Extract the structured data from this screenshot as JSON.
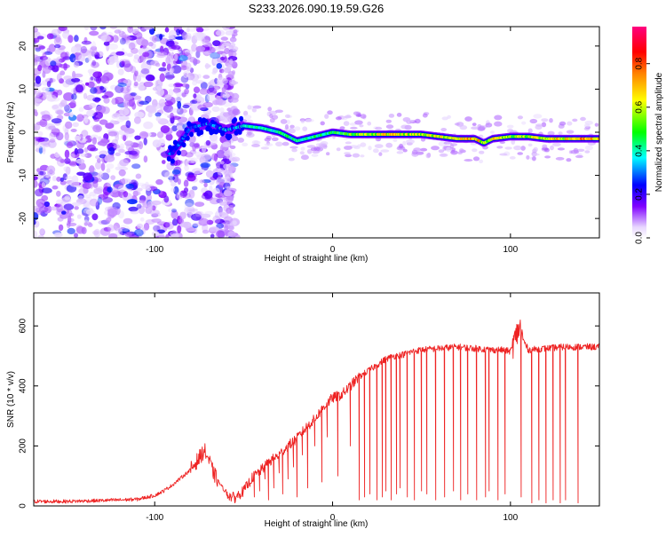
{
  "title": "S233.2026.090.19.59.G26",
  "chart_data": [
    {
      "type": "heatmap",
      "title": "S233.2026.090.19.59.G26",
      "xlabel": "Height of straight line (km)",
      "ylabel": "Frequency (Hz)",
      "xlim": [
        -168,
        150
      ],
      "ylim": [
        -24.5,
        24.5
      ],
      "xticks": [
        -100,
        0,
        100
      ],
      "yticks": [
        -20,
        -10,
        0,
        10,
        20
      ],
      "colorbar": {
        "label": "Normalized spectral amplitude",
        "range": [
          0,
          0.97
        ],
        "ticks": [
          0.0,
          0.2,
          0.4,
          0.6,
          0.8
        ],
        "tick_labels": [
          "0.0",
          "0.2",
          "0.4",
          "0.6",
          "0.8"
        ],
        "colors": [
          "#ffffff",
          "#7f00ff",
          "#0000ff",
          "#00ffff",
          "#00ff00",
          "#ffff00",
          "#ff8000",
          "#ff0000",
          "#ff0080"
        ]
      },
      "ridge": {
        "name": "frequency ridge",
        "x": [
          -90,
          -80,
          -70,
          -60,
          -50,
          -40,
          -30,
          -20,
          -10,
          0,
          10,
          20,
          30,
          40,
          50,
          60,
          70,
          80,
          85,
          90,
          100,
          110,
          120,
          130,
          140,
          150
        ],
        "y": [
          -5,
          1,
          2,
          0.5,
          1.5,
          1,
          0,
          -2,
          -1,
          0,
          -0.5,
          -0.5,
          -0.5,
          -0.5,
          -0.5,
          -1,
          -1.5,
          -1.5,
          -2.5,
          -1.5,
          -1,
          -1,
          -1.5,
          -1.5,
          -1.5,
          -1.5
        ],
        "amplitude": [
          0.3,
          0.3,
          0.35,
          0.4,
          0.4,
          0.45,
          0.45,
          0.45,
          0.45,
          0.5,
          0.55,
          0.6,
          0.7,
          0.65,
          0.65,
          0.65,
          0.7,
          0.8,
          0.6,
          0.7,
          0.6,
          0.6,
          0.65,
          0.7,
          0.75,
          0.7
        ]
      },
      "noise_region": {
        "x_range": [
          -168,
          -55
        ],
        "amplitude_range": [
          0.05,
          0.3
        ]
      }
    },
    {
      "type": "line",
      "xlabel": "Height of straight line (km)",
      "ylabel": "SNR (10 * v/v)",
      "xlim": [
        -168,
        150
      ],
      "ylim": [
        0,
        710
      ],
      "xticks": [
        -100,
        0,
        100
      ],
      "yticks": [
        0,
        200,
        400,
        600
      ],
      "series": [
        {
          "name": "SNR",
          "color": "#ee2222",
          "x": [
            -168,
            -150,
            -130,
            -110,
            -100,
            -95,
            -90,
            -85,
            -80,
            -75,
            -72,
            -70,
            -67,
            -64,
            -60,
            -57,
            -55,
            -50,
            -45,
            -40,
            -35,
            -30,
            -25,
            -20,
            -15,
            -10,
            -5,
            0,
            5,
            10,
            15,
            20,
            25,
            30,
            35,
            40,
            45,
            50,
            60,
            70,
            80,
            90,
            95,
            100,
            103,
            105,
            107,
            110,
            120,
            130,
            140,
            150
          ],
          "y": [
            15,
            15,
            18,
            22,
            35,
            50,
            70,
            95,
            120,
            160,
            185,
            160,
            110,
            80,
            45,
            30,
            28,
            50,
            95,
            120,
            150,
            170,
            200,
            225,
            260,
            290,
            330,
            360,
            370,
            400,
            430,
            450,
            470,
            490,
            500,
            505,
            515,
            520,
            525,
            530,
            525,
            520,
            520,
            515,
            560,
            600,
            555,
            520,
            525,
            530,
            530,
            530
          ]
        }
      ],
      "dropouts": {
        "x": [
          -55,
          -52,
          -48,
          -44,
          -41,
          -38,
          -36,
          -33,
          -30,
          -28,
          -25,
          -22,
          -20,
          -17,
          -14,
          -10,
          -6,
          -3,
          3,
          10,
          15,
          18,
          21,
          25,
          28,
          30,
          33,
          36,
          38,
          42,
          46,
          50,
          53,
          58,
          63,
          68,
          72,
          76,
          81,
          86,
          88,
          93,
          97,
          106,
          112,
          116,
          120,
          124,
          128,
          131,
          138
        ],
        "y": [
          10,
          40,
          60,
          30,
          50,
          90,
          20,
          60,
          110,
          40,
          90,
          130,
          30,
          170,
          60,
          200,
          80,
          230,
          100,
          200,
          20,
          30,
          40,
          20,
          30,
          50,
          20,
          40,
          60,
          30,
          20,
          50,
          40,
          20,
          30,
          50,
          20,
          40,
          20,
          30,
          50,
          20,
          40,
          30,
          10,
          20,
          10,
          20,
          10,
          20,
          10
        ]
      }
    }
  ]
}
